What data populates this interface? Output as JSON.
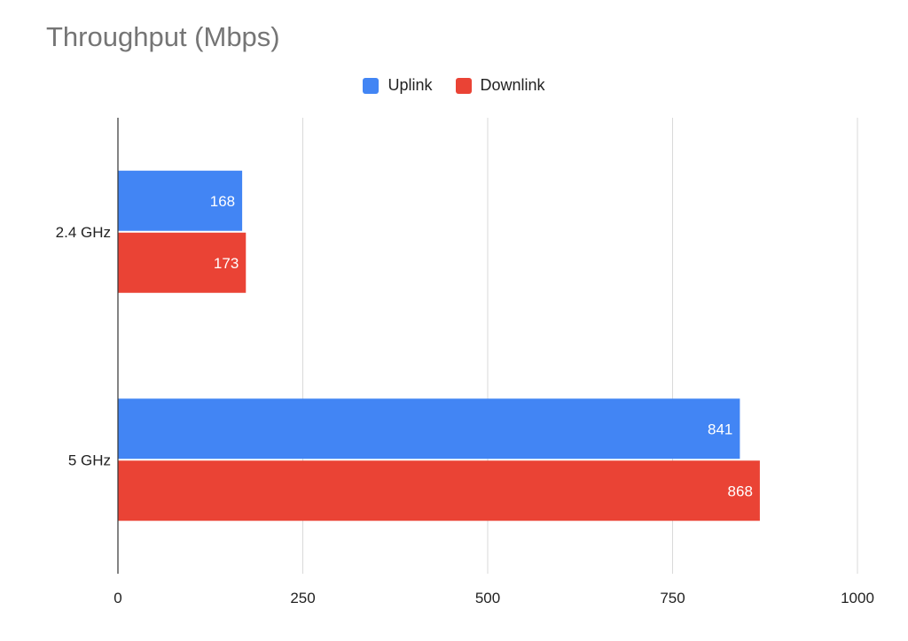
{
  "chart_data": {
    "type": "bar",
    "orientation": "horizontal",
    "title": "Throughput (Mbps)",
    "xlabel": "",
    "ylabel": "",
    "categories": [
      "2.4 GHz",
      "5 GHz"
    ],
    "series": [
      {
        "name": "Uplink",
        "values": [
          168,
          841
        ],
        "color": "#4285f4"
      },
      {
        "name": "Downlink",
        "values": [
          173,
          868
        ],
        "color": "#ea4335"
      }
    ],
    "xlim": [
      0,
      1000
    ],
    "x_ticks": [
      0,
      250,
      500,
      750,
      1000
    ],
    "grid": true,
    "legend_position": "top-center",
    "data_labels": true
  }
}
